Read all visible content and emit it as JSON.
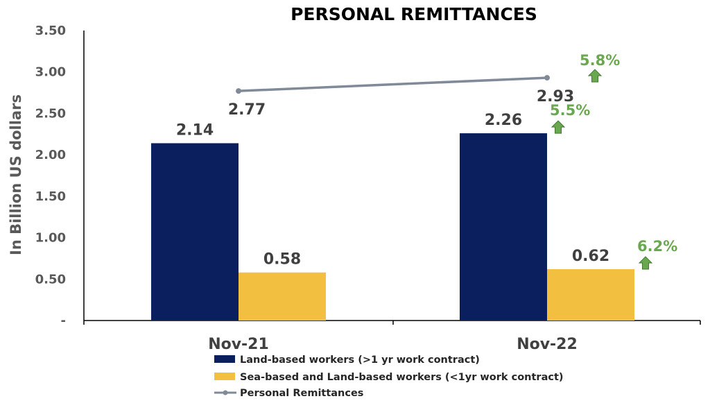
{
  "chart_data": {
    "type": "bar",
    "title": "PERSONAL REMITTANCES",
    "ylabel": "In Billion US dollars",
    "xlabel": "",
    "categories": [
      "Nov-21",
      "Nov-22"
    ],
    "ylim": [
      0,
      3.5
    ],
    "yticks": [
      {
        "value": 0,
        "label": "-"
      },
      {
        "value": 0.5,
        "label": "0.50"
      },
      {
        "value": 1.0,
        "label": "1.00"
      },
      {
        "value": 1.5,
        "label": "1.50"
      },
      {
        "value": 2.0,
        "label": "2.00"
      },
      {
        "value": 2.5,
        "label": "2.50"
      },
      {
        "value": 3.0,
        "label": "3.00"
      },
      {
        "value": 3.5,
        "label": "3.50"
      }
    ],
    "grid": false,
    "legend_position": "bottom",
    "series": [
      {
        "name": "Land-based workers (>1 yr work contract)",
        "type": "bar",
        "color": "#0b1f5e",
        "values": [
          2.14,
          2.26
        ],
        "labels": [
          "2.14",
          "2.26"
        ],
        "growth": [
          null,
          "5.5%"
        ]
      },
      {
        "name": "Sea-based and Land-based workers (<1yr work contract)",
        "type": "bar",
        "color": "#f2bf40",
        "values": [
          0.58,
          0.62
        ],
        "labels": [
          "0.58",
          "0.62"
        ],
        "growth": [
          null,
          "6.2%"
        ]
      },
      {
        "name": "Personal Remittances",
        "type": "line",
        "color": "#808a99",
        "values": [
          2.77,
          2.93
        ],
        "labels": [
          "2.77",
          "2.93"
        ],
        "growth": [
          null,
          "5.8%"
        ]
      }
    ],
    "growth_color": "#6aa84f",
    "arrow_icon": "up-arrow-icon"
  }
}
